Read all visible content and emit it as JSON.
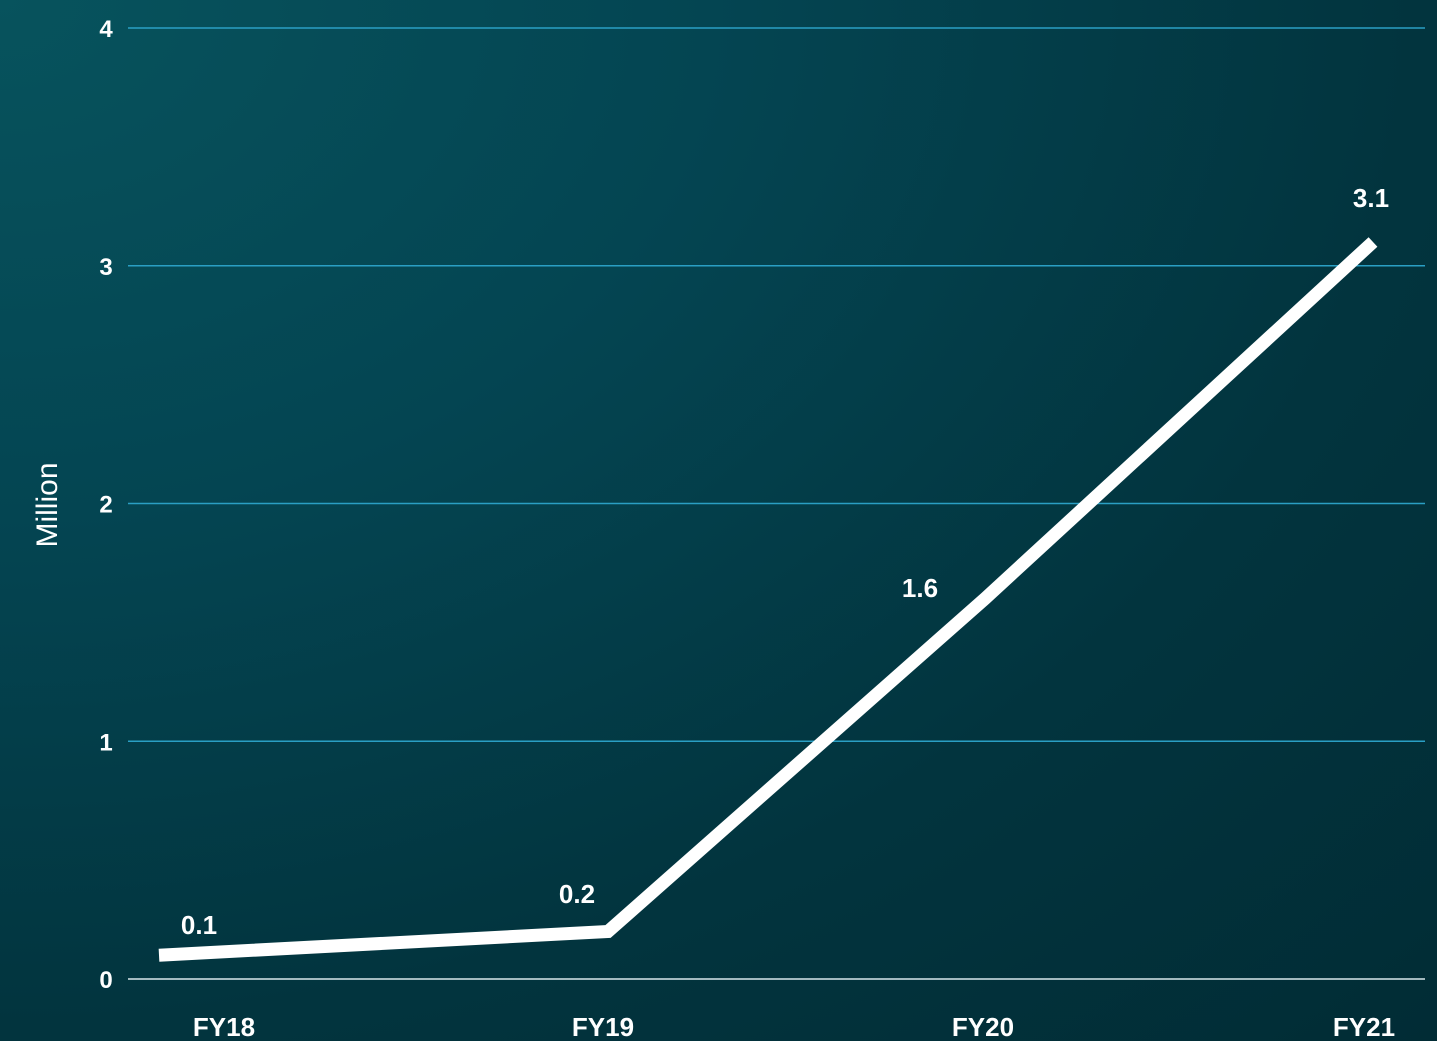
{
  "chart_data": {
    "type": "line",
    "categories": [
      "FY18",
      "FY19",
      "FY20",
      "FY21"
    ],
    "series": [
      {
        "values": [
          0.1,
          0.2,
          1.6,
          3.1
        ]
      }
    ],
    "data_labels": [
      "0.1",
      "0.2",
      "1.6",
      "3.1"
    ],
    "ylabel": "Million",
    "xlabel": "",
    "ylim": [
      0,
      4
    ],
    "yticks": [
      0,
      1,
      2,
      3,
      4
    ],
    "ytick_labels": [
      "0",
      "1",
      "2",
      "3",
      "4"
    ],
    "grid": true,
    "colors": {
      "line": "#ffffff",
      "grid": "#2a9fc4",
      "baseline": "#d9e8ec",
      "background": "#03404b"
    }
  }
}
